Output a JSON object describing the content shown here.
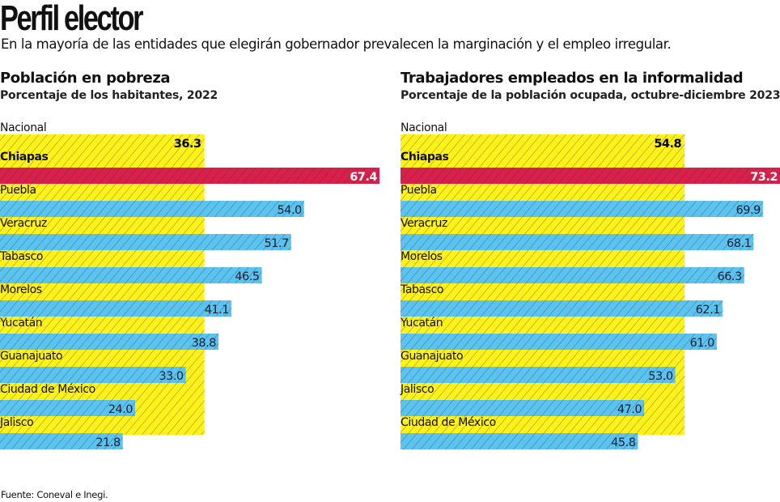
{
  "header": {
    "title": "Perfil elector",
    "subtitle": "En la mayoría de las entidades que elegirán gobernador prevalecen la marginación y el empleo irregular."
  },
  "colors": {
    "national": "#FFF21A",
    "highlight": "#D91F4B",
    "state": "#5AC3EF",
    "hatch": "#3a3a3a",
    "highlight_text": "#ffffff",
    "value_text": "#1b2036"
  },
  "source": "Fuente: Coneval e Inegi.",
  "chart_data": [
    {
      "type": "bar",
      "orientation": "horizontal",
      "title": "Población en pobreza",
      "subtitle": "Porcentaje de los habitantes, 2022",
      "xlabel": "",
      "ylabel": "",
      "xlim": [
        0,
        67.4
      ],
      "grid": false,
      "reference": {
        "name": "Nacional",
        "value": 36.3
      },
      "categories": [
        "Chiapas",
        "Puebla",
        "Veracruz",
        "Tabasco",
        "Morelos",
        "Yucatán",
        "Guanajuato",
        "Ciudad de México",
        "Jalisco"
      ],
      "values": [
        67.4,
        54.0,
        51.7,
        46.5,
        41.1,
        38.8,
        33.0,
        24.0,
        21.8
      ],
      "value_labels": [
        "67.4",
        "54.0",
        "51.7",
        "46.5",
        "41.1",
        "38.8",
        "33.0",
        "24.0",
        "21.8"
      ],
      "reference_label": "36.3",
      "highlight": "Chiapas"
    },
    {
      "type": "bar",
      "orientation": "horizontal",
      "title": "Trabajadores empleados en la informalidad",
      "subtitle": "Porcentaje de la población ocupada, octubre-diciembre 2023",
      "xlabel": "",
      "ylabel": "",
      "xlim": [
        0,
        73.2
      ],
      "grid": false,
      "reference": {
        "name": "Nacional",
        "value": 54.8
      },
      "categories": [
        "Chiapas",
        "Puebla",
        "Veracruz",
        "Morelos",
        "Tabasco",
        "Yucatán",
        "Guanajuato",
        "Jalisco",
        "Ciudad de México"
      ],
      "values": [
        73.2,
        69.9,
        68.1,
        66.3,
        62.1,
        61.0,
        53.0,
        47.0,
        45.8
      ],
      "value_labels": [
        "73.2",
        "69.9",
        "68.1",
        "66.3",
        "62.1",
        "61.0",
        "53.0",
        "47.0",
        "45.8"
      ],
      "reference_label": "54.8",
      "highlight": "Chiapas"
    }
  ]
}
